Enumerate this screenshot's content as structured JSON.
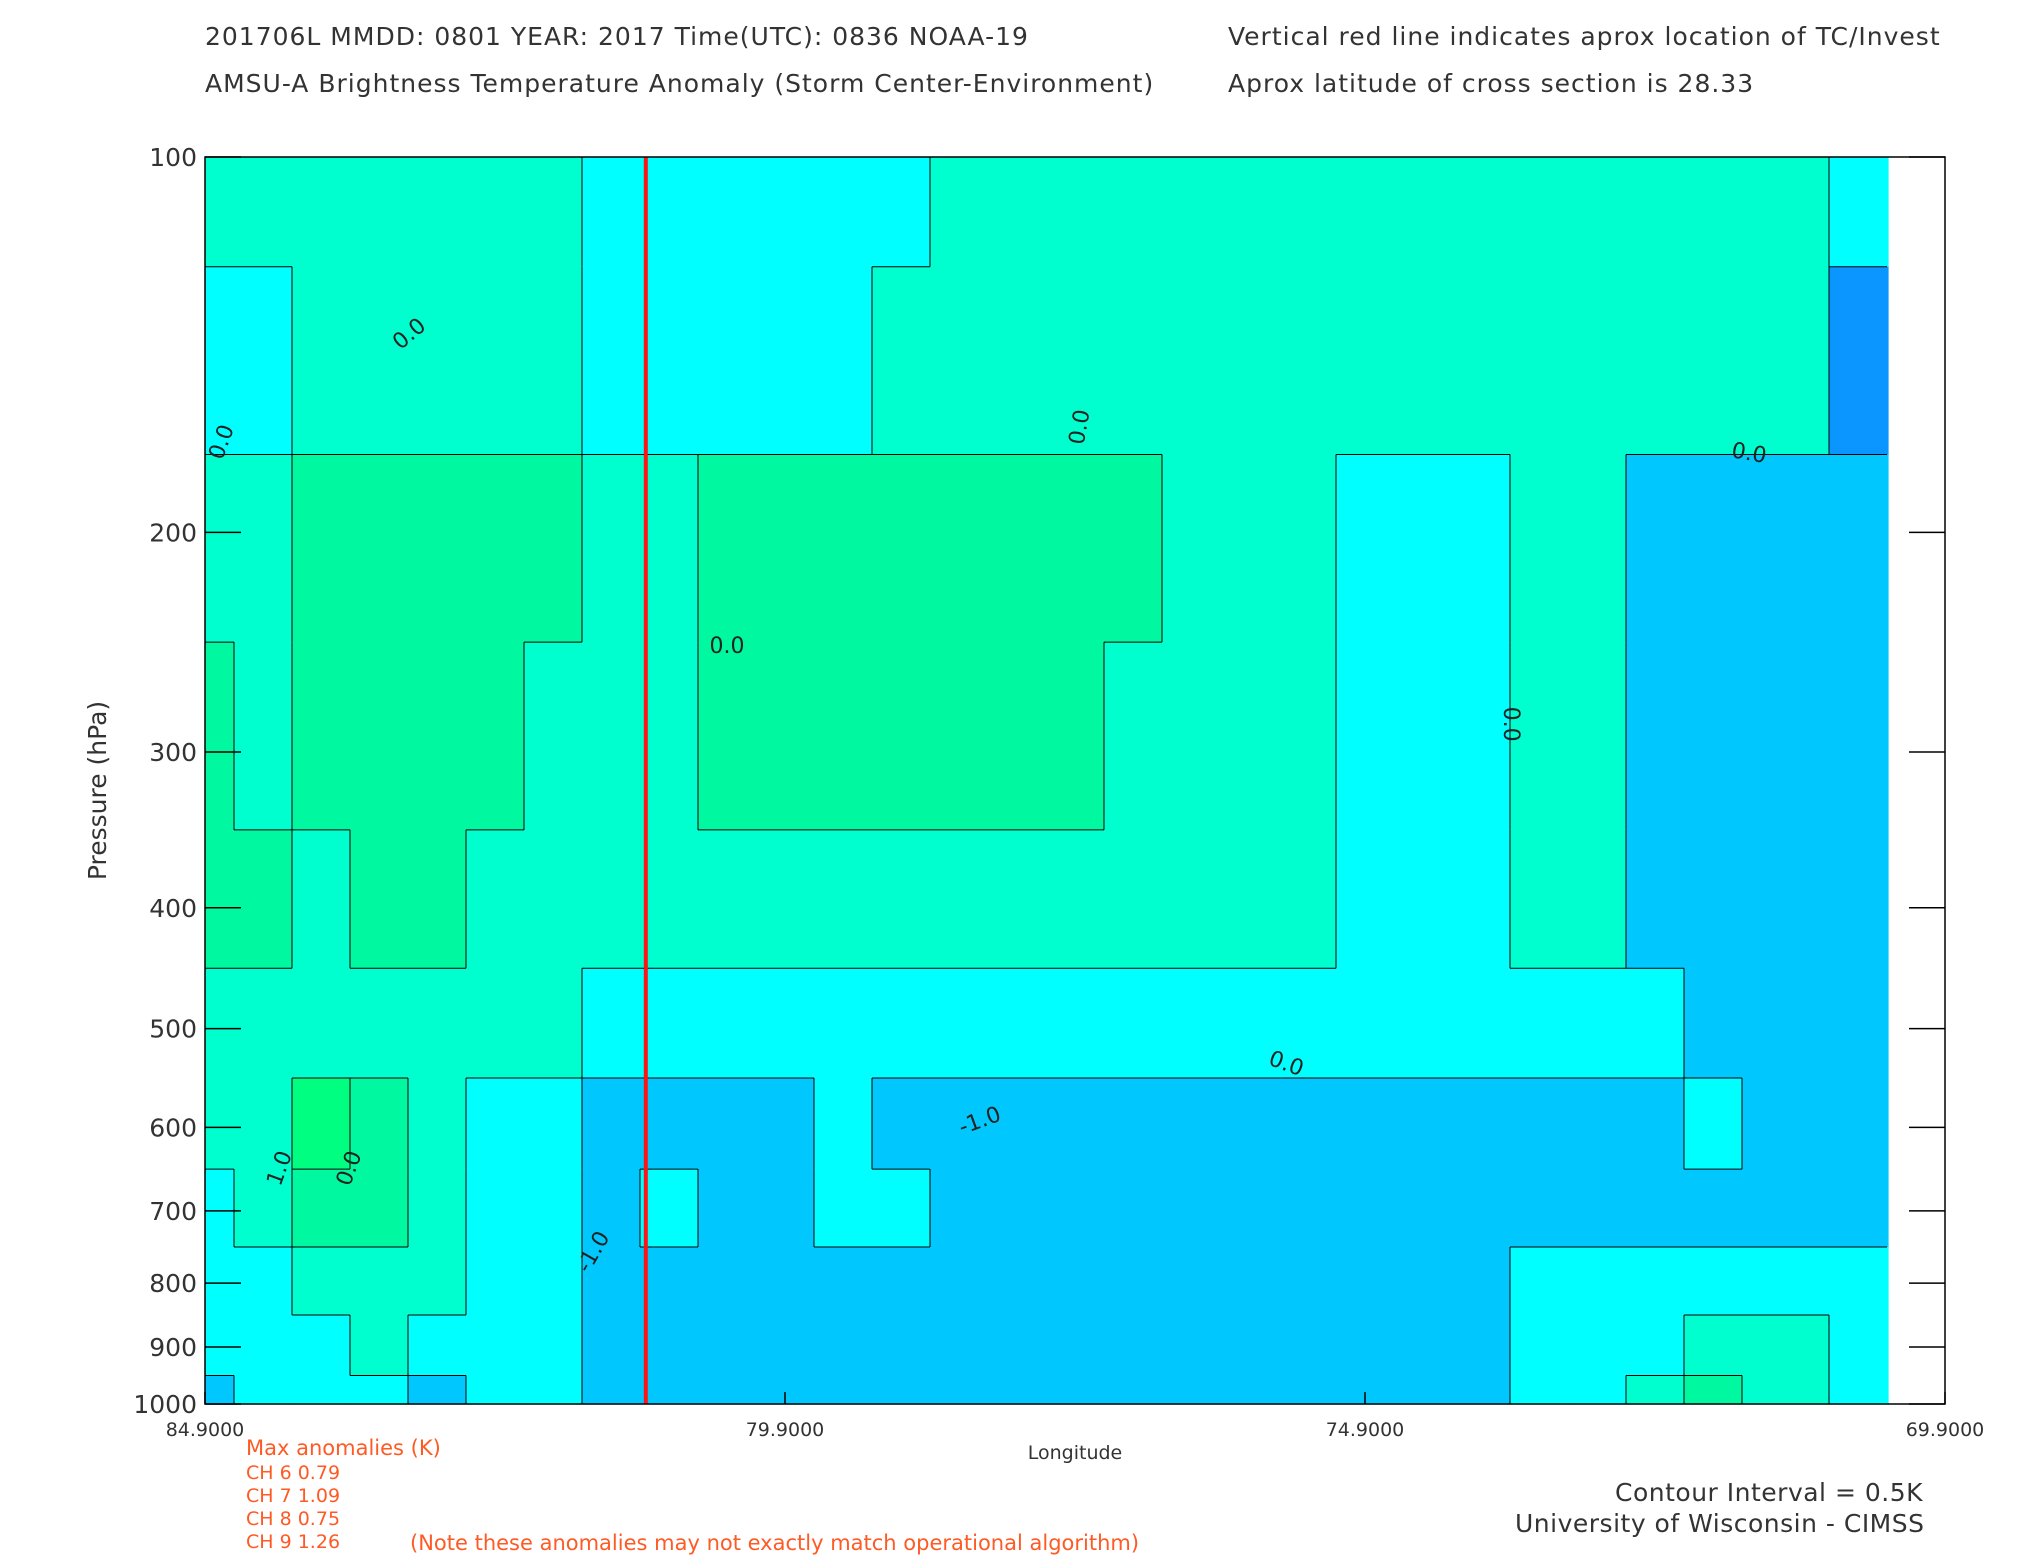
{
  "header": {
    "line1_left": "201706L  MMDD: 0801 YEAR: 2017 Time(UTC): 0836 NOAA-19",
    "line2_left": "AMSU-A Brightness Temperature Anomaly (Storm Center-Environment)",
    "line1_right": "Vertical red line indicates aprox location of TC/Invest",
    "line2_right": "Aprox latitude of cross section is 28.33"
  },
  "colors": {
    "level_m2": "#1060ff",
    "level_m15": "#0a95ff",
    "level_m1": "#00c8ff",
    "level_m05": "#00ffff",
    "level_0": "#00ffce",
    "level_05": "#00f8a0",
    "level_1": "#00ff80",
    "tc_line": "#ff1414",
    "contour": "#000000",
    "annotation": "#ff5a24"
  },
  "chart_data": {
    "type": "heatmap",
    "xlabel": "Longitude",
    "ylabel": "Pressure (hPa)",
    "x_axis": {
      "min": 84.9,
      "max": 69.9,
      "ticks": [
        84.9,
        79.9,
        74.9,
        69.9
      ],
      "tick_labels": [
        "84.9000",
        "79.9000",
        "74.9000",
        "69.9000"
      ]
    },
    "y_axis": {
      "scale": "log",
      "min": 100,
      "max": 1000,
      "ticks": [
        100,
        200,
        300,
        400,
        500,
        600,
        700,
        800,
        900,
        1000
      ],
      "tick_labels": [
        "100",
        "200",
        "300",
        "400",
        "500",
        "600",
        "700",
        "800",
        "900",
        "1000"
      ]
    },
    "tc_longitude": 81.1,
    "contour_interval_K": 0.5,
    "value_key": [
      "level_m2",
      "level_m15",
      "level_m1",
      "level_m05",
      "level_0",
      "level_05",
      "level_1"
    ],
    "grid_longitudes": [
      84.9,
      84.4,
      83.9,
      83.4,
      82.9,
      82.4,
      81.9,
      81.4,
      80.9,
      80.4,
      79.9,
      79.4,
      78.9,
      78.4,
      77.9,
      77.4,
      76.9,
      76.4,
      75.9,
      75.4,
      74.9,
      74.4,
      73.9,
      73.4,
      72.9,
      72.4,
      71.9,
      71.4,
      70.4
    ],
    "grid_pressures": [
      100,
      150,
      200,
      300,
      400,
      500,
      600,
      700,
      800,
      900,
      1000
    ],
    "grid_values": [
      [
        4,
        4,
        4,
        4,
        4,
        4,
        4,
        3,
        3,
        3,
        3,
        3,
        3,
        4,
        4,
        4,
        4,
        4,
        4,
        4,
        4,
        4,
        4,
        4,
        4,
        4,
        4,
        4,
        3
      ],
      [
        3,
        3,
        4,
        4,
        4,
        4,
        4,
        3,
        3,
        3,
        3,
        3,
        4,
        4,
        4,
        4,
        4,
        4,
        4,
        4,
        4,
        4,
        4,
        4,
        4,
        4,
        4,
        4,
        1
      ],
      [
        4,
        4,
        5,
        5,
        5,
        5,
        5,
        4,
        4,
        5,
        5,
        5,
        5,
        5,
        5,
        5,
        5,
        4,
        4,
        4,
        3,
        3,
        3,
        4,
        4,
        2,
        2,
        2,
        2
      ],
      [
        5,
        4,
        5,
        5,
        5,
        5,
        4,
        4,
        4,
        5,
        5,
        5,
        5,
        5,
        5,
        5,
        4,
        4,
        4,
        4,
        3,
        3,
        3,
        4,
        4,
        2,
        2,
        2,
        2
      ],
      [
        5,
        5,
        4,
        5,
        5,
        4,
        4,
        4,
        4,
        4,
        4,
        4,
        4,
        4,
        4,
        4,
        4,
        4,
        4,
        4,
        3,
        3,
        3,
        4,
        4,
        2,
        2,
        2,
        2
      ],
      [
        4,
        4,
        4,
        4,
        4,
        4,
        4,
        3,
        3,
        3,
        3,
        3,
        3,
        3,
        3,
        3,
        3,
        3,
        3,
        3,
        3,
        3,
        3,
        3,
        3,
        3,
        2,
        2,
        2
      ],
      [
        4,
        4,
        6,
        5,
        4,
        3,
        3,
        2,
        2,
        2,
        2,
        3,
        2,
        2,
        2,
        2,
        2,
        2,
        2,
        2,
        2,
        2,
        2,
        2,
        2,
        2,
        3,
        2,
        2
      ],
      [
        3,
        4,
        5,
        5,
        4,
        3,
        3,
        2,
        3,
        2,
        2,
        3,
        3,
        2,
        2,
        2,
        2,
        2,
        2,
        2,
        2,
        2,
        2,
        2,
        2,
        2,
        2,
        2,
        2
      ],
      [
        3,
        3,
        4,
        4,
        4,
        3,
        3,
        2,
        2,
        2,
        2,
        2,
        2,
        2,
        2,
        2,
        2,
        2,
        2,
        2,
        2,
        2,
        2,
        3,
        3,
        3,
        3,
        3,
        3
      ],
      [
        3,
        3,
        3,
        4,
        3,
        3,
        3,
        2,
        2,
        2,
        2,
        2,
        2,
        2,
        2,
        2,
        2,
        2,
        2,
        2,
        2,
        2,
        2,
        3,
        3,
        3,
        4,
        4,
        3
      ],
      [
        2,
        3,
        3,
        3,
        2,
        3,
        3,
        2,
        2,
        2,
        2,
        2,
        2,
        2,
        2,
        2,
        2,
        2,
        2,
        2,
        2,
        2,
        2,
        3,
        3,
        4,
        5,
        4,
        3
      ]
    ],
    "contour_labels": [
      "0.0",
      "0.0",
      "0.0",
      "0.0",
      "0.0",
      "0.0",
      "0.0",
      "1.0",
      "0.0",
      "-1.0",
      "-1.0"
    ]
  },
  "footer": {
    "max_title": "Max anomalies (K)",
    "channels": [
      "CH 6  0.79",
      "CH 7  1.09",
      "CH 8  0.75",
      "CH 9  1.26"
    ],
    "note": "(Note these anomalies may not exactly match operational algorithm)",
    "contour_interval": "Contour Interval = 0.5K",
    "credit": "University of Wisconsin - CIMSS"
  }
}
